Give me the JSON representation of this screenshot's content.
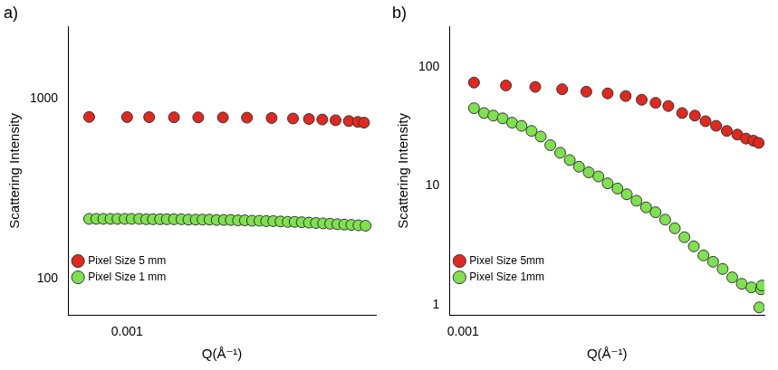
{
  "chart_data": [
    {
      "type": "scatter",
      "title": "a)",
      "x_label": "Q(Å⁻¹)",
      "y_label": "Scattering Intensity",
      "log": true,
      "grid": false,
      "legend": "upper right",
      "marker": "circle",
      "xlim": [
        0.00063,
        0.0086
      ],
      "xticks": [
        0.001
      ],
      "ylim": [
        63,
        2500
      ],
      "yticks": [
        100,
        1000
      ],
      "series": [
        {
          "name": "Pixel Size 5 mm",
          "color": "#e0281e",
          "x": [
            0.00072,
            0.001,
            0.00121,
            0.0015,
            0.00185,
            0.00229,
            0.00282,
            0.00349,
            0.0042,
            0.00482,
            0.00541,
            0.00607,
            0.00681,
            0.00736,
            0.00776
          ],
          "values": [
            790,
            789,
            788,
            787,
            786,
            785,
            783,
            780,
            775,
            770,
            765,
            758,
            750,
            742,
            735
          ]
        },
        {
          "name": "Pixel Size 1 mm",
          "color": "#7fe050",
          "x": [
            0.00072,
            0.000766,
            0.000814,
            0.000866,
            0.00092,
            0.000979,
            0.00104,
            0.00111,
            0.00118,
            0.00125,
            0.00133,
            0.00141,
            0.0015,
            0.0016,
            0.0017,
            0.00181,
            0.00192,
            0.00204,
            0.00217,
            0.00231,
            0.00245,
            0.00261,
            0.00277,
            0.00295,
            0.00314,
            0.00333,
            0.00354,
            0.00377,
            0.00401,
            0.00426,
            0.00453,
            0.00482,
            0.00512,
            0.00545,
            0.00579,
            0.00616,
            0.00655,
            0.00696,
            0.0074,
            0.00787
          ],
          "values": [
            215,
            215,
            215,
            215,
            215,
            215,
            215,
            215,
            214,
            214,
            214,
            214,
            214,
            214,
            213,
            213,
            213,
            213,
            212,
            212,
            212,
            211,
            211,
            210,
            210,
            209,
            209,
            208,
            207,
            207,
            206,
            205,
            204,
            203,
            202,
            201,
            200,
            199,
            198,
            197
          ]
        }
      ]
    },
    {
      "type": "scatter",
      "title": "b)",
      "x_label": "Q(Å⁻¹)",
      "y_label": "Scattering Intensity",
      "log": true,
      "grid": false,
      "legend": "upper right",
      "marker": "circle",
      "xlim": [
        0.00089,
        0.0136
      ],
      "xticks": [
        0.001
      ],
      "ylim": [
        0.82,
        218
      ],
      "yticks": [
        1,
        10,
        100
      ],
      "series": [
        {
          "name": "Pixel Size 5mm",
          "color": "#e0281e",
          "x": [
            0.0011,
            0.00145,
            0.00187,
            0.00236,
            0.00291,
            0.0035,
            0.00409,
            0.0047,
            0.0053,
            0.00592,
            0.00667,
            0.00745,
            0.00817,
            0.00895,
            0.00982,
            0.01076,
            0.01159,
            0.01236,
            0.01294
          ],
          "values": [
            74,
            70,
            68,
            65,
            62,
            60,
            57,
            53,
            50,
            47,
            41,
            39,
            35,
            32,
            29,
            27,
            25,
            24,
            23
          ]
        },
        {
          "name": "Pixel Size 1mm",
          "color": "#7fe050",
          "x": [
            0.0011,
            0.0012,
            0.0013,
            0.00141,
            0.00153,
            0.00166,
            0.00181,
            0.00196,
            0.00213,
            0.00232,
            0.00252,
            0.00273,
            0.00297,
            0.00323,
            0.0035,
            0.00381,
            0.00413,
            0.00449,
            0.00488,
            0.0053,
            0.00576,
            0.00626,
            0.0068,
            0.00738,
            0.00802,
            0.00872,
            0.00947,
            0.01029,
            0.01118,
            0.01214,
            0.01319,
            0.013,
            0.0133
          ],
          "values": [
            45,
            41,
            39,
            37,
            34,
            32,
            29,
            26,
            22,
            19,
            16.5,
            14.5,
            13,
            12,
            10.5,
            9.5,
            8.5,
            7.5,
            6.6,
            6,
            5.2,
            4.4,
            3.7,
            3.1,
            2.6,
            2.3,
            2,
            1.7,
            1.5,
            1.4,
            1.35,
            0.95,
            1.45
          ]
        }
      ]
    }
  ]
}
